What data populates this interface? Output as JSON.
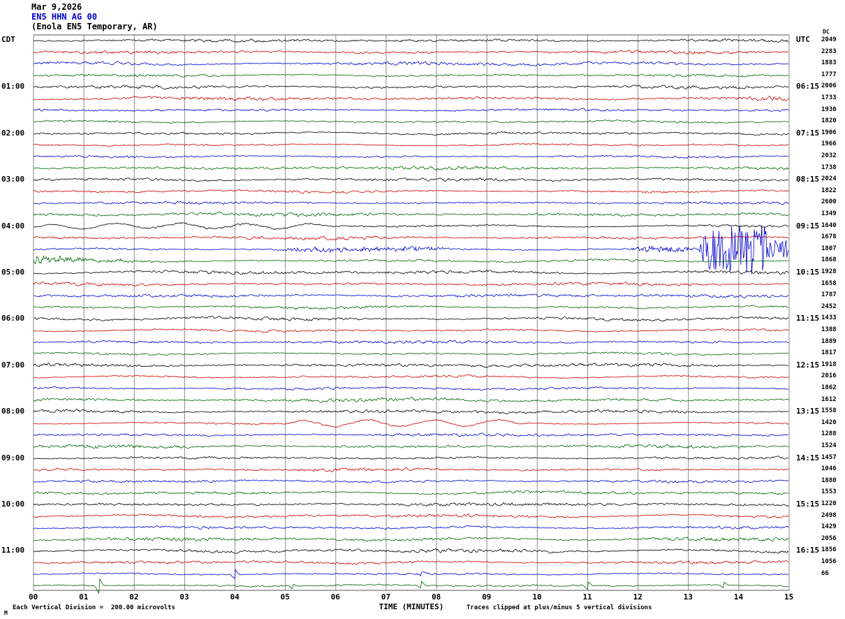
{
  "title": {
    "date": "Mar 9,2026",
    "station": "EN5 HHN AG 00",
    "location": "(Enola EN5 Temporary, AR)"
  },
  "axes": {
    "left_tz": "CDT",
    "right_tz": "UTC",
    "dc_header": "DC",
    "left_labels": [
      "01:00",
      "02:00",
      "03:00",
      "04:00",
      "05:00",
      "06:00",
      "07:00",
      "08:00",
      "09:00",
      "10:00",
      "11:00"
    ],
    "right_labels": [
      "06:15",
      "07:15",
      "08:15",
      "09:15",
      "10:15",
      "11:15",
      "12:15",
      "13:15",
      "14:15",
      "15:15",
      "16:15"
    ],
    "dc_values": [
      "2049",
      "2283",
      "1883",
      "1777",
      "2006",
      "1733",
      "1930",
      "1820",
      "1906",
      "1966",
      "2032",
      "1738",
      "2024",
      "1822",
      "2600",
      "1349",
      "1640",
      "1678",
      "1807",
      "1868",
      "1928",
      "1658",
      "1787",
      "2452",
      "1433",
      "1388",
      "1889",
      "1817",
      "1918",
      "2016",
      "1862",
      "1612",
      "1558",
      "1420",
      "1288",
      "1524",
      "1457",
      "1046",
      "1880",
      "1553",
      "1220",
      "2498",
      "1429",
      "2056",
      "1856",
      "1056",
      "66",
      ""
    ],
    "x_label": "TIME (MINUTES)"
  },
  "footer": {
    "scale": "Each Vertical Division =  200.00 microvolts",
    "clip": "Traces clipped at plus/minus 5 vertical divisions",
    "corner": "M"
  },
  "chart_data": {
    "type": "line",
    "subtype": "helicorder-seismogram",
    "title": "EN5 HHN AG 00 (Enola EN5 Temporary, AR) Mar 9,2026",
    "xlabel": "TIME (MINUTES)",
    "x_range": [
      0,
      15
    ],
    "x_ticks": [
      "00",
      "01",
      "02",
      "03",
      "04",
      "05",
      "06",
      "07",
      "08",
      "09",
      "10",
      "11",
      "12",
      "13",
      "14",
      "15"
    ],
    "rows": 48,
    "minutes_per_row": 15,
    "trace_colors": [
      "#000000",
      "#cc0000",
      "#0000cc",
      "#006600"
    ],
    "clip_divisions": 5,
    "events": [
      {
        "row": 16,
        "type": "slow",
        "m0": 0,
        "m1": 6,
        "amp": 3.5
      },
      {
        "row": 18,
        "type": "noise",
        "m0": 4.9,
        "m1": 8.3,
        "amp": 2.5
      },
      {
        "row": 18,
        "type": "noise",
        "m0": 11.8,
        "m1": 13.2,
        "amp": 4
      },
      {
        "row": 18,
        "type": "burst",
        "m0": 13.2,
        "m1": 15,
        "amp": 36
      },
      {
        "row": 19,
        "type": "decay",
        "m0": 0,
        "m1": 4.5,
        "amp": 7
      },
      {
        "row": 33,
        "type": "slow",
        "m0": 5,
        "m1": 9.8,
        "amp": 4.5
      },
      {
        "row": 46,
        "type": "spike",
        "m0": 4.0,
        "amp": 7
      },
      {
        "row": 46,
        "type": "spike",
        "m0": 7.7,
        "amp": 3
      },
      {
        "row": 47,
        "type": "spike",
        "m0": 1.3,
        "amp": 11
      },
      {
        "row": 47,
        "type": "spike",
        "m0": 5.15,
        "amp": 4
      },
      {
        "row": 47,
        "type": "spike",
        "m0": 7.7,
        "amp": 5
      },
      {
        "row": 47,
        "type": "spike",
        "m0": 11.0,
        "amp": 6
      },
      {
        "row": 47,
        "type": "spike",
        "m0": 13.7,
        "amp": 4
      }
    ]
  }
}
